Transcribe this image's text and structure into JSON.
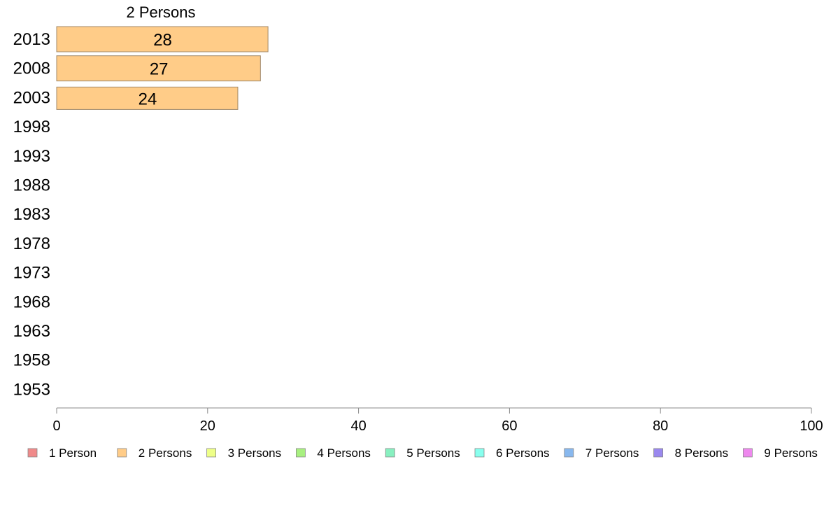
{
  "chart_data": {
    "type": "bar",
    "orientation": "horizontal",
    "title": "",
    "xlabel": "",
    "ylabel": "",
    "xlim": [
      0,
      100
    ],
    "x_ticks": [
      0,
      20,
      40,
      60,
      80,
      100
    ],
    "categories": [
      "2013",
      "2008",
      "2003",
      "1998",
      "1993",
      "1988",
      "1983",
      "1978",
      "1973",
      "1968",
      "1963",
      "1958",
      "1953"
    ],
    "series": [
      {
        "name": "2 Persons",
        "color": "#ffcc88",
        "values": [
          28,
          27,
          24,
          null,
          null,
          null,
          null,
          null,
          null,
          null,
          null,
          null,
          null
        ],
        "labels": [
          "28",
          "27",
          "24",
          "",
          "",
          "",
          "",
          "",
          "",
          "",
          "",
          "",
          ""
        ]
      }
    ],
    "segment_header": "2 Persons",
    "grid": false,
    "legend_position": "bottom",
    "legend": [
      {
        "label": "1 Person",
        "color": "#f08a8a"
      },
      {
        "label": "2 Persons",
        "color": "#ffcc88"
      },
      {
        "label": "3 Persons",
        "color": "#eeff88"
      },
      {
        "label": "4 Persons",
        "color": "#a8f080"
      },
      {
        "label": "5 Persons",
        "color": "#88f0c0"
      },
      {
        "label": "6 Persons",
        "color": "#88ffee"
      },
      {
        "label": "7 Persons",
        "color": "#88b8ee"
      },
      {
        "label": "8 Persons",
        "color": "#9a88ee"
      },
      {
        "label": "9 Persons",
        "color": "#ee88ee"
      }
    ]
  }
}
